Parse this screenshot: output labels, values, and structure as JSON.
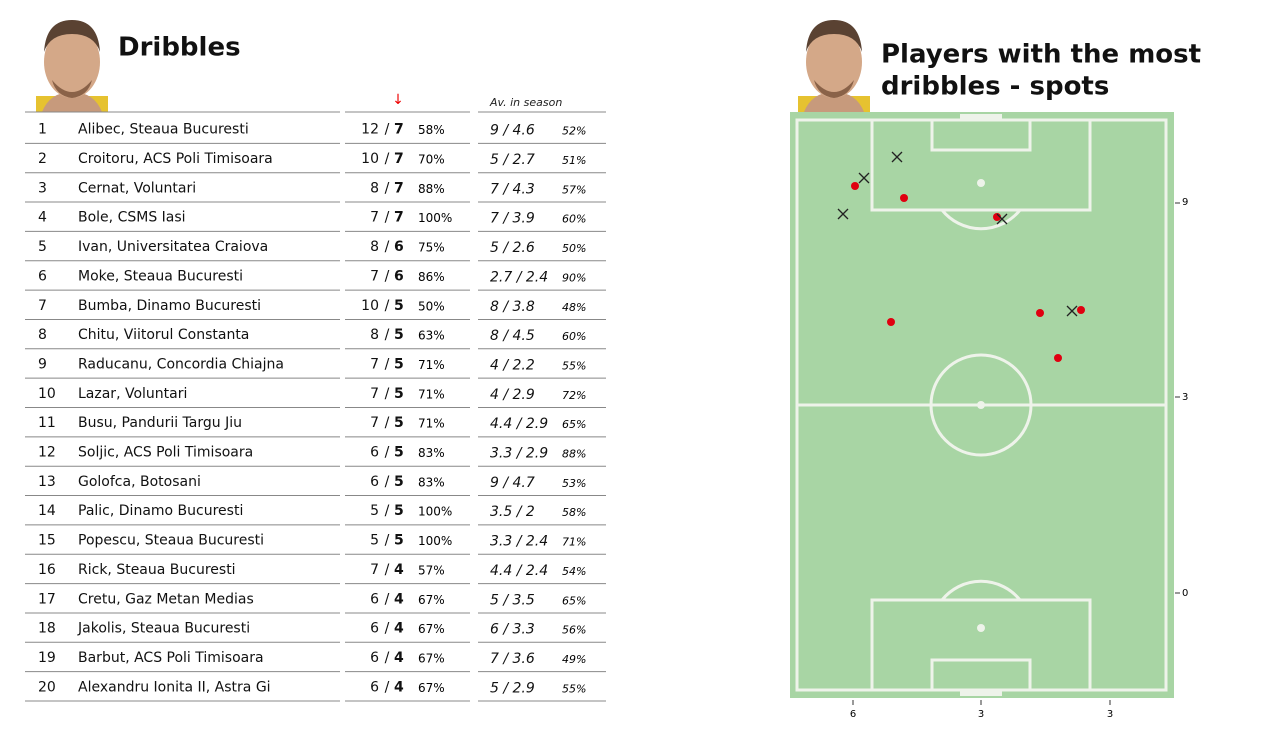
{
  "left": {
    "title": "Dribbles",
    "sort_marker": "↓",
    "season_header": "Av. in season",
    "separator": "/"
  },
  "table": {
    "rows": [
      [
        1,
        "Alibec, Steaua Bucuresti",
        12,
        7,
        "58%",
        "9 / 4.6",
        "52%"
      ],
      [
        2,
        "Croitoru, ACS Poli Timisoara",
        10,
        7,
        "70%",
        "5 / 2.7",
        "51%"
      ],
      [
        3,
        "Cernat, Voluntari",
        8,
        7,
        "88%",
        "7 / 4.3",
        "57%"
      ],
      [
        4,
        "Bole, CSMS Iasi",
        7,
        7,
        "100%",
        "7 / 3.9",
        "60%"
      ],
      [
        5,
        "Ivan, Universitatea Craiova",
        8,
        6,
        "75%",
        "5 / 2.6",
        "50%"
      ],
      [
        6,
        "Moke, Steaua Bucuresti",
        7,
        6,
        "86%",
        "2.7 / 2.4",
        "90%"
      ],
      [
        7,
        "Bumba, Dinamo Bucuresti",
        10,
        5,
        "50%",
        "8 / 3.8",
        "48%"
      ],
      [
        8,
        "Chitu, Viitorul Constanta",
        8,
        5,
        "63%",
        "8 / 4.5",
        "60%"
      ],
      [
        9,
        "Raducanu, Concordia Chiajna",
        7,
        5,
        "71%",
        "4 / 2.2",
        "55%"
      ],
      [
        10,
        "Lazar, Voluntari",
        7,
        5,
        "71%",
        "4 / 2.9",
        "72%"
      ],
      [
        11,
        "Busu, Pandurii Targu Jiu",
        7,
        5,
        "71%",
        "4.4 / 2.9",
        "65%"
      ],
      [
        12,
        "Soljic, ACS Poli Timisoara",
        6,
        5,
        "83%",
        "3.3 / 2.9",
        "88%"
      ],
      [
        13,
        "Golofca, Botosani",
        6,
        5,
        "83%",
        "9 / 4.7",
        "53%"
      ],
      [
        14,
        "Palic, Dinamo Bucuresti",
        5,
        5,
        "100%",
        "3.5 / 2",
        "58%"
      ],
      [
        15,
        "Popescu, Steaua Bucuresti",
        5,
        5,
        "100%",
        "3.3 / 2.4",
        "71%"
      ],
      [
        16,
        "Rick, Steaua Bucuresti",
        7,
        4,
        "57%",
        "4.4 / 2.4",
        "54%"
      ],
      [
        17,
        "Cretu, Gaz Metan Medias",
        6,
        4,
        "67%",
        "5 / 3.5",
        "65%"
      ],
      [
        18,
        "Jakolis, Steaua Bucuresti",
        6,
        4,
        "67%",
        "6 / 3.3",
        "56%"
      ],
      [
        19,
        "Barbut, ACS Poli Timisoara",
        6,
        4,
        "67%",
        "7 / 3.6",
        "49%"
      ],
      [
        20,
        "Alexandru Ionita II, Astra Gi",
        6,
        4,
        "67%",
        "5 / 2.9",
        "55%"
      ]
    ]
  },
  "right": {
    "title_lines": [
      "Players with the most",
      "dribbles - spots"
    ],
    "right_labels": [
      "9",
      "3",
      "0"
    ],
    "bottom_labels": [
      "6",
      "3",
      "3"
    ]
  }
}
